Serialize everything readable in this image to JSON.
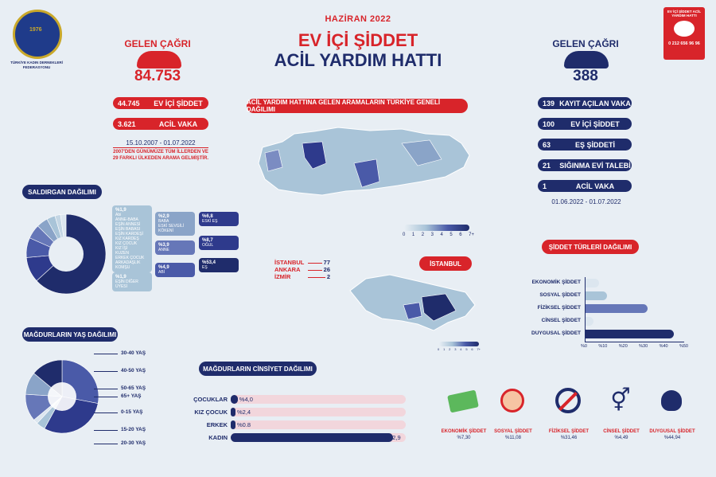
{
  "logo": {
    "text": "TÜRKİYE KADIN DERNEKLERİ FEDERASYONU",
    "badge": "1976"
  },
  "header": {
    "date": "HAZİRAN 2022",
    "title_line1": "EV İÇİ ŞİDDET",
    "title_line2": "ACİL YARDIM HATTI"
  },
  "hotline_badge": {
    "text": "EV İÇİ ŞİDDET ACİL YARDIM HATTI",
    "number": "0 212 656 96 96"
  },
  "left_calls": {
    "label": "GELEN ÇAĞRI",
    "value": "84.753",
    "items": [
      {
        "num": "44.745",
        "label": "EV İÇİ ŞİDDET"
      },
      {
        "num": "3.621",
        "label": "ACİL VAKA"
      }
    ],
    "date_range": "15.10.2007 - 01.07.2022",
    "note": "2007'DEN GÜNÜMÜZE TÜM İLLERDEN VE 29 FARKLI ÜLKEDEN ARAMA GELMİŞTİR."
  },
  "right_calls": {
    "label": "GELEN ÇAĞRI",
    "value": "388",
    "items": [
      {
        "num": "139",
        "label": "KAYIT AÇILAN VAKA"
      },
      {
        "num": "100",
        "label": "EV İÇİ ŞİDDET"
      },
      {
        "num": "63",
        "label": "EŞ ŞİDDETİ"
      },
      {
        "num": "21",
        "label": "SIĞINMA EVİ TALEBİ"
      },
      {
        "num": "1",
        "label": "ACİL VAKA"
      }
    ],
    "date_range": "01.06.2022 - 01.07.2022"
  },
  "map_section": {
    "title": "ACİL YARDIM HATTINA GELEN ARAMALARIN TÜRKİYE GENELİ DAĞILIMI",
    "legend_ticks": [
      "0",
      "1",
      "2",
      "3",
      "4",
      "5",
      "6",
      "7+"
    ],
    "cities": [
      {
        "name": "İSTANBUL",
        "value": "77"
      },
      {
        "name": "ANKARA",
        "value": "26"
      },
      {
        "name": "İZMİR",
        "value": "2"
      }
    ],
    "istanbul_title": "İSTANBUL",
    "istanbul_ticks": [
      "0",
      "1",
      "2",
      "3",
      "4",
      "5",
      "6",
      "7+"
    ]
  },
  "attacker": {
    "title": "SALDIRGAN DAĞILIMI",
    "groups": [
      {
        "pct": "%1,9",
        "items": [
          "Abi",
          "ANNE-BABA",
          "EŞİN ANNESİ",
          "EŞİN BABASI",
          "EŞİN KARDEŞİ",
          "KIZ KARDEŞ",
          "KIZ ÇOCUK",
          "KIZ İŞİ",
          "KUZEN",
          "ERKEK ÇOCUK",
          "ARKADAŞLIK",
          "KOMŞU"
        ]
      },
      {
        "pct": "%1,9",
        "items": [
          "EŞİN DİĞER ÜYESİ"
        ]
      },
      {
        "pct": "%2,9",
        "items": [
          "BABA",
          "ESKİ SEVGİLİ",
          "KÖKENİ"
        ]
      },
      {
        "pct": "%3,9",
        "items": [
          "ANNE"
        ]
      },
      {
        "pct": "%4,9",
        "items": [
          "ABİ"
        ]
      },
      {
        "pct": "%6,8",
        "items": [
          "ESKİ EŞ"
        ]
      },
      {
        "pct": "%8,7",
        "items": [
          "OĞUL"
        ]
      },
      {
        "pct": "%53,4",
        "items": [
          "EŞ"
        ]
      }
    ]
  },
  "age": {
    "title": "MAĞDURLARIN YAŞ DAĞILIMI",
    "labels": [
      "30-40 YAŞ",
      "40-50 YAŞ",
      "50-65 YAŞ",
      "65+ YAŞ",
      "0-15 YAŞ",
      "15-20 YAŞ",
      "20-30 YAŞ"
    ]
  },
  "gender": {
    "title": "MAĞDURLARIN CİNSİYET DAĞILIMI",
    "rows": [
      {
        "label": "ÇOCUKLAR",
        "value": "%4,0",
        "num": 4.0
      },
      {
        "label": "KIZ ÇOCUK",
        "value": "%2,4",
        "num": 2.4
      },
      {
        "label": "ERKEK",
        "value": "%0.8",
        "num": 0.8
      },
      {
        "label": "KADIN",
        "value": "%92,9",
        "num": 92.9
      }
    ]
  },
  "violence": {
    "title": "ŞİDDET TÜRLERİ DAĞILIMI",
    "rows": [
      {
        "label": "EKONOMİK ŞİDDET",
        "num": 7.3
      },
      {
        "label": "SOSYAL ŞİDDET",
        "num": 11.08
      },
      {
        "label": "FİZİKSEL ŞİDDET",
        "num": 31.46
      },
      {
        "label": "CİNSEL ŞİDDET",
        "num": 4.49
      },
      {
        "label": "DUYGUSAL ŞİDDET",
        "num": 44.94
      }
    ],
    "ticks": [
      "%0",
      "%10",
      "%20",
      "%30",
      "%40",
      "%50"
    ]
  },
  "icons": [
    {
      "label": "EKONOMİK ŞİDDET",
      "value": "%7,30"
    },
    {
      "label": "SOSYAL ŞİDDET",
      "value": "%11,08"
    },
    {
      "label": "FİZİKSEL ŞİDDET",
      "value": "%31,46"
    },
    {
      "label": "CİNSEL ŞİDDET",
      "value": "%4,49"
    },
    {
      "label": "DUYGUSAL ŞİDDET",
      "value": "%44,94"
    }
  ],
  "colors": {
    "red": "#d8242a",
    "navy": "#1f2c6b",
    "light": "#a9c4d8"
  }
}
